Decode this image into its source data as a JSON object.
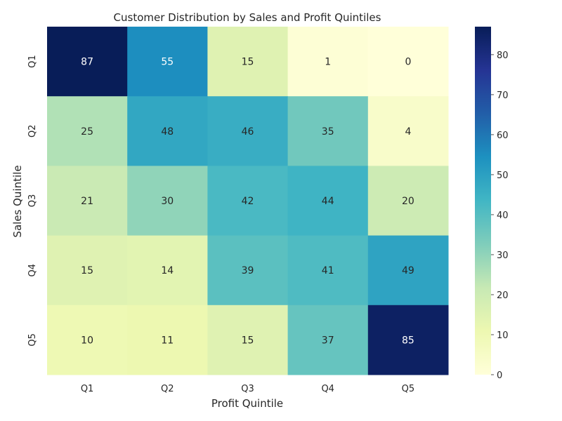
{
  "chart_data": {
    "type": "heatmap",
    "title": "Customer Distribution by Sales and Profit Quintiles",
    "xlabel": "Profit Quintile",
    "ylabel": "Sales Quintile",
    "x_categories": [
      "Q1",
      "Q2",
      "Q3",
      "Q4",
      "Q5"
    ],
    "y_categories": [
      "Q1",
      "Q2",
      "Q3",
      "Q4",
      "Q5"
    ],
    "values": [
      [
        87,
        55,
        15,
        1,
        0
      ],
      [
        25,
        48,
        46,
        35,
        4
      ],
      [
        21,
        30,
        42,
        44,
        20
      ],
      [
        15,
        14,
        39,
        41,
        49
      ],
      [
        10,
        11,
        15,
        37,
        85
      ]
    ],
    "colormap": "YlGnBu",
    "vmin": 0,
    "vmax": 87,
    "colorbar_ticks": [
      0,
      10,
      20,
      30,
      40,
      50,
      60,
      70,
      80
    ],
    "annotations": true
  }
}
